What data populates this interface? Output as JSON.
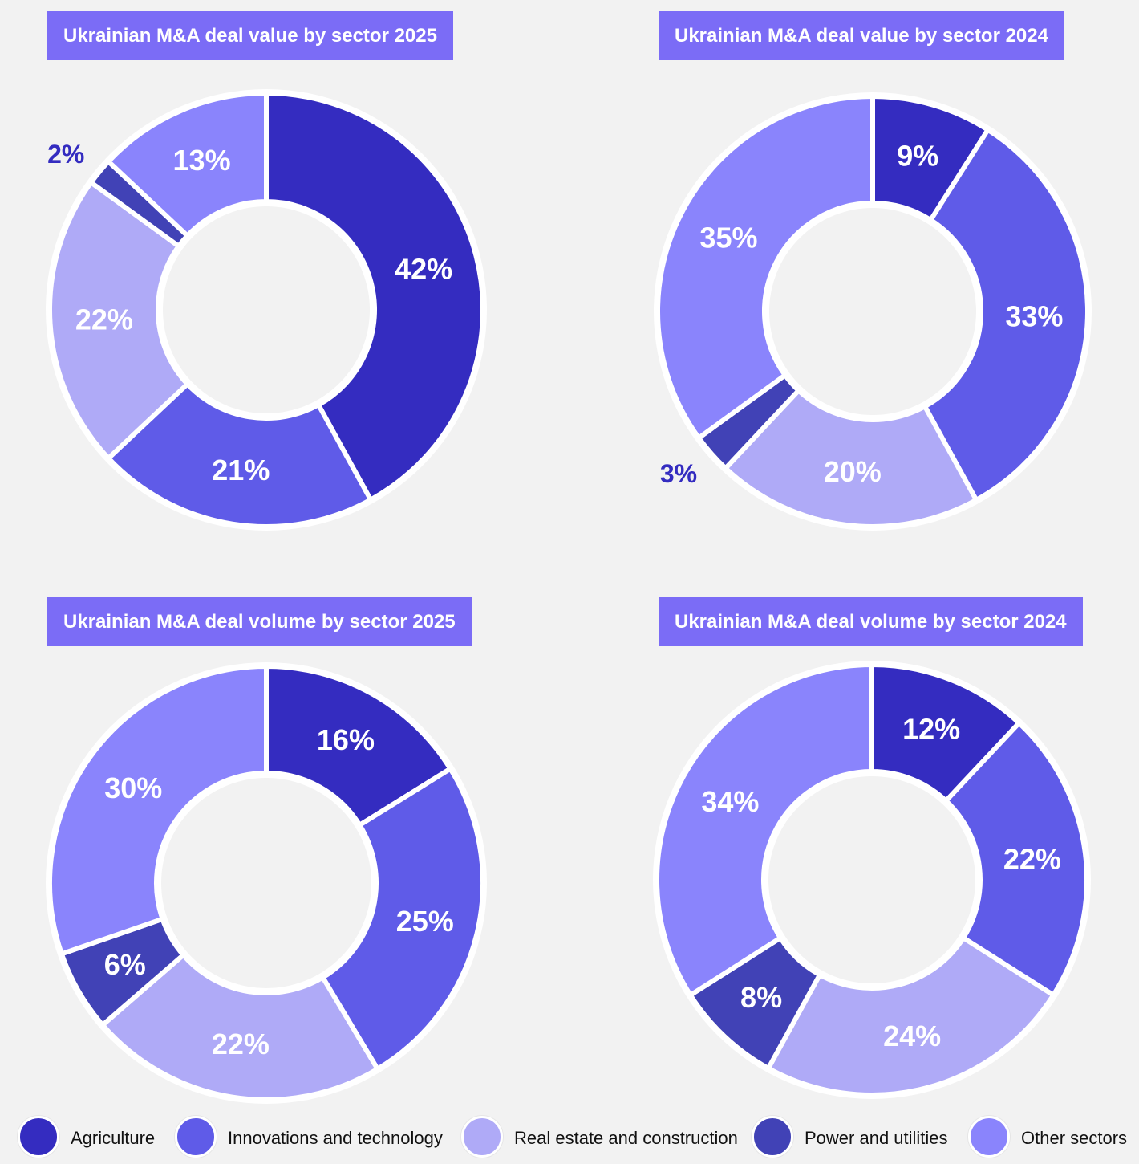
{
  "colors": {
    "Agriculture": "#342cc0",
    "Innovations and technology": "#5f5be8",
    "Real estate and construction": "#afaaf7",
    "Power and utilities": "#4142b6",
    "Other sectors": "#8a84fc",
    "title_bg": "#7b6cf6",
    "background": "#f2f2f2"
  },
  "legend": [
    {
      "label": "Agriculture"
    },
    {
      "label": "Innovations and technology"
    },
    {
      "label": "Real estate and construction"
    },
    {
      "label": "Power and utilities"
    },
    {
      "label": "Other sectors"
    }
  ],
  "chart_data": [
    {
      "type": "pie",
      "title": "Ukrainian M&A deal value by sector 2025",
      "series": [
        {
          "name": "Agriculture",
          "value": 42,
          "label": "42%"
        },
        {
          "name": "Innovations and technology",
          "value": 21,
          "label": "21%"
        },
        {
          "name": "Real estate and construction",
          "value": 22,
          "label": "22%"
        },
        {
          "name": "Power and utilities",
          "value": 2,
          "label": "2%"
        },
        {
          "name": "Other sectors",
          "value": 13,
          "label": "13%"
        }
      ]
    },
    {
      "type": "pie",
      "title": "Ukrainian M&A deal value by sector 2024",
      "series": [
        {
          "name": "Agriculture",
          "value": 9,
          "label": "9%"
        },
        {
          "name": "Innovations and technology",
          "value": 33,
          "label": "33%"
        },
        {
          "name": "Real estate and construction",
          "value": 20,
          "label": "20%"
        },
        {
          "name": "Power and utilities",
          "value": 3,
          "label": "3%"
        },
        {
          "name": "Other sectors",
          "value": 35,
          "label": "35%"
        }
      ]
    },
    {
      "type": "pie",
      "title": "Ukrainian M&A deal volume by sector 2025",
      "series": [
        {
          "name": "Agriculture",
          "value": 16,
          "label": "16%"
        },
        {
          "name": "Innovations and technology",
          "value": 25,
          "label": "25%"
        },
        {
          "name": "Real estate and construction",
          "value": 22,
          "label": "22%"
        },
        {
          "name": "Power and utilities",
          "value": 6,
          "label": "6%"
        },
        {
          "name": "Other sectors",
          "value": 30,
          "label": "30%"
        }
      ]
    },
    {
      "type": "pie",
      "title": "Ukrainian M&A deal volume by sector 2024",
      "series": [
        {
          "name": "Agriculture",
          "value": 12,
          "label": "12%"
        },
        {
          "name": "Innovations and technology",
          "value": 22,
          "label": "22%"
        },
        {
          "name": "Real estate and construction",
          "value": 24,
          "label": "24%"
        },
        {
          "name": "Power and utilities",
          "value": 8,
          "label": "8%"
        },
        {
          "name": "Other sectors",
          "value": 34,
          "label": "34%"
        }
      ]
    }
  ]
}
